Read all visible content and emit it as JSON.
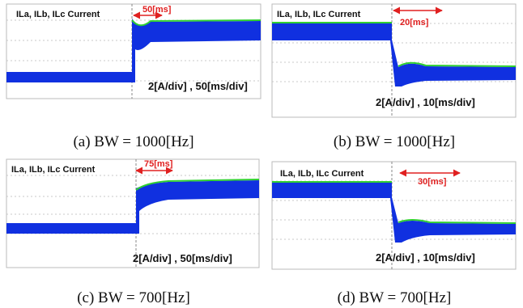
{
  "panels": [
    {
      "title": "ILa, ILb, ILc Current",
      "marker": "50[ms]",
      "scale": "2[A/div] , 50[ms/div]",
      "caption": "(a) BW = 1000[Hz]"
    },
    {
      "title": "ILa, ILb, ILc Current",
      "marker": "20[ms]",
      "scale": "2[A/div] , 10[ms/div]",
      "caption": "(b) BW = 1000[Hz]"
    },
    {
      "title": "ILa, ILb, ILc Current",
      "marker": "75[ms]",
      "scale": "2[A/div] , 50[ms/div]",
      "caption": "(c) BW = 700[Hz]"
    },
    {
      "title": "ILa, ILb, ILc Current",
      "marker": "30[ms]",
      "scale": "2[A/div] , 10[ms/div]",
      "caption": "(d) BW = 700[Hz]"
    }
  ]
}
